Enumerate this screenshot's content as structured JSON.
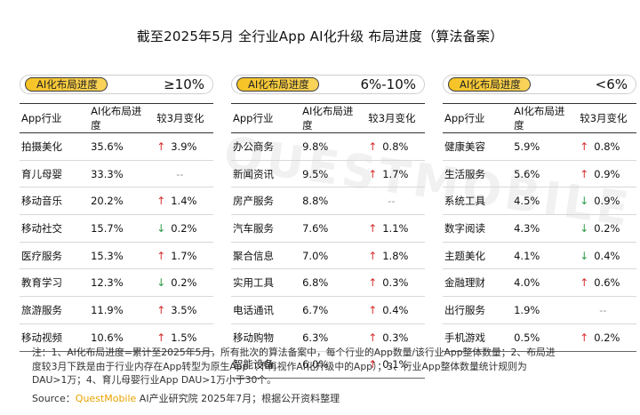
{
  "title": "截至2025年5月 全行业App AI化升级 布局进度（算法备案）",
  "panel_label": "AI化布局进度",
  "headers": [
    "App行业",
    "AI化布局进度",
    "较3月变化"
  ],
  "watermark": "QUESTMOBILE",
  "chart_data": {
    "type": "table",
    "title": "截至2025年5月 全行业App AI化升级 布局进度（算法备案）",
    "columns": [
      "App行业",
      "AI化布局进度",
      "较3月变化"
    ],
    "groups": [
      {
        "range": "≥10%",
        "rows": [
          {
            "industry": "拍摄美化",
            "progress": "35.6%",
            "change": "3.9%",
            "dir": "up"
          },
          {
            "industry": "育儿母婴",
            "progress": "33.3%",
            "change": "--",
            "dir": "none"
          },
          {
            "industry": "移动音乐",
            "progress": "20.2%",
            "change": "1.4%",
            "dir": "up"
          },
          {
            "industry": "移动社交",
            "progress": "15.7%",
            "change": "0.2%",
            "dir": "down"
          },
          {
            "industry": "医疗服务",
            "progress": "15.3%",
            "change": "1.7%",
            "dir": "up"
          },
          {
            "industry": "教育学习",
            "progress": "12.3%",
            "change": "0.2%",
            "dir": "down"
          },
          {
            "industry": "旅游服务",
            "progress": "11.9%",
            "change": "3.5%",
            "dir": "up"
          },
          {
            "industry": "移动视频",
            "progress": "10.6%",
            "change": "1.5%",
            "dir": "up"
          }
        ]
      },
      {
        "range": "6%-10%",
        "rows": [
          {
            "industry": "办公商务",
            "progress": "9.8%",
            "change": "0.8%",
            "dir": "up"
          },
          {
            "industry": "新闻资讯",
            "progress": "9.5%",
            "change": "1.7%",
            "dir": "up"
          },
          {
            "industry": "房产服务",
            "progress": "8.8%",
            "change": "--",
            "dir": "none"
          },
          {
            "industry": "汽车服务",
            "progress": "7.6%",
            "change": "1.1%",
            "dir": "up"
          },
          {
            "industry": "聚合信息",
            "progress": "7.0%",
            "change": "1.8%",
            "dir": "up"
          },
          {
            "industry": "实用工具",
            "progress": "6.8%",
            "change": "0.3%",
            "dir": "up"
          },
          {
            "industry": "电话通讯",
            "progress": "6.7%",
            "change": "0.4%",
            "dir": "up"
          },
          {
            "industry": "移动购物",
            "progress": "6.3%",
            "change": "0.3%",
            "dir": "up"
          },
          {
            "industry": "智能设备",
            "progress": "6.0%",
            "change": "0.1%",
            "dir": "up"
          }
        ]
      },
      {
        "range": "<6%",
        "rows": [
          {
            "industry": "健康美容",
            "progress": "5.9%",
            "change": "0.8%",
            "dir": "up"
          },
          {
            "industry": "生活服务",
            "progress": "5.6%",
            "change": "0.9%",
            "dir": "up"
          },
          {
            "industry": "系统工具",
            "progress": "4.5%",
            "change": "0.9%",
            "dir": "down"
          },
          {
            "industry": "数字阅读",
            "progress": "4.3%",
            "change": "0.2%",
            "dir": "down"
          },
          {
            "industry": "主题美化",
            "progress": "4.1%",
            "change": "0.4%",
            "dir": "down"
          },
          {
            "industry": "金融理财",
            "progress": "4.0%",
            "change": "0.6%",
            "dir": "up"
          },
          {
            "industry": "出行服务",
            "progress": "1.9%",
            "change": "--",
            "dir": "none"
          },
          {
            "industry": "手机游戏",
            "progress": "0.5%",
            "change": "0.2%",
            "dir": "up"
          }
        ]
      }
    ]
  },
  "notes": {
    "line1": "注：1、AI化布局进度=累计至2025年5月，所有批次的算法备案中，每个行业的App数量/该行业App整体数量；2、布局进",
    "line2": "度较3月下跌是由于行业内存在App转型为原生App（不再视作AI化升级中的App）；3、行业App整体数量统计规则为",
    "line3": "DAU>1万；4、育儿母婴行业App DAU>1万小于30个。",
    "source_prefix": "Source：",
    "source_brand": "QuestMobile",
    "source_rest": " AI产业研究院 2025年7月；根据公开资料整理"
  },
  "colors": {
    "up": "#d62d2d",
    "down": "#2c9b46",
    "accent": "#f6c324"
  }
}
